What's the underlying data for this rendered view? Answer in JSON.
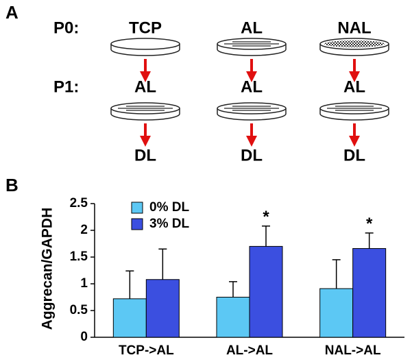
{
  "panel_a": {
    "label": "A",
    "rows": [
      {
        "label": "P0:",
        "items": [
          "TCP",
          "AL",
          "NAL"
        ]
      },
      {
        "label": "P1:",
        "items": [
          "AL",
          "AL",
          "AL"
        ]
      }
    ],
    "result": [
      "DL",
      "DL",
      "DL"
    ]
  },
  "chart_data": {
    "type": "bar",
    "panel_label": "B",
    "ylabel": "Aggrecan/GAPDH",
    "categories": [
      "TCP->AL",
      "AL->AL",
      "NAL->AL"
    ],
    "series": [
      {
        "name": "0% DL",
        "color": "#5cc8f4",
        "values": [
          0.72,
          0.75,
          0.91
        ],
        "errors": [
          0.52,
          0.29,
          0.54
        ]
      },
      {
        "name": "3% DL",
        "color": "#3b4fe0",
        "values": [
          1.08,
          1.7,
          1.66
        ],
        "errors": [
          0.57,
          0.38,
          0.29
        ],
        "markers": [
          null,
          "*",
          "*"
        ]
      }
    ],
    "ylim": [
      0,
      2.5
    ],
    "yticks": [
      0,
      0.5,
      1,
      1.5,
      2,
      2.5
    ],
    "legend": "upper left"
  }
}
